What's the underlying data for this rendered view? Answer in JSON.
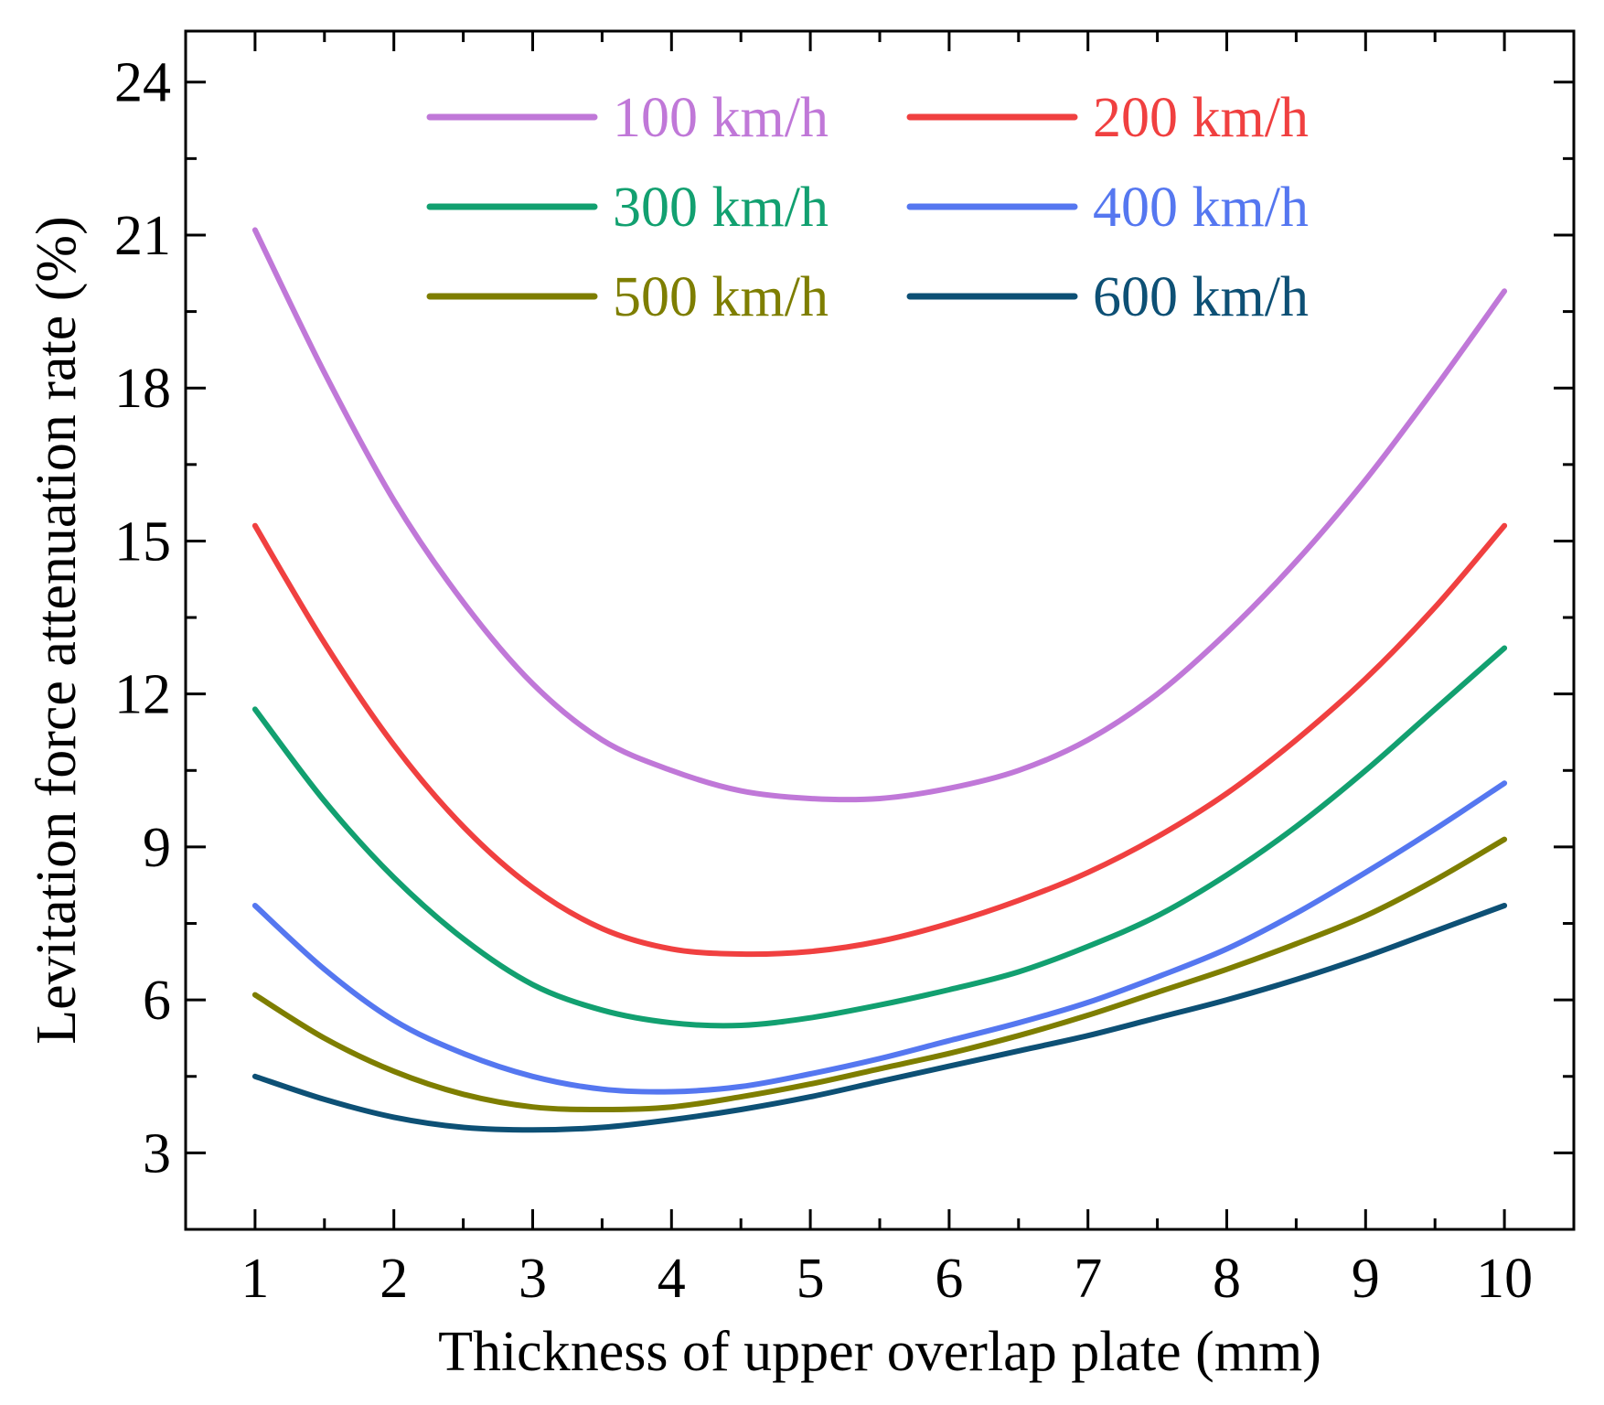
{
  "chart_data": {
    "type": "line",
    "title": "",
    "xlabel": "Thickness of upper overlap plate (mm)",
    "ylabel": "Levitation force attenuation rate (%)",
    "xlim": [
      0.5,
      10.5
    ],
    "ylim": [
      1.5,
      25
    ],
    "x_ticks": [
      1,
      2,
      3,
      4,
      5,
      6,
      7,
      8,
      9,
      10
    ],
    "x_tick_labels": [
      "1",
      "2",
      "3",
      "4",
      "5",
      "6",
      "7",
      "8",
      "9",
      "10"
    ],
    "y_ticks": [
      3,
      6,
      9,
      12,
      15,
      18,
      21,
      24
    ],
    "y_tick_labels": [
      "3",
      "6",
      "9",
      "12",
      "15",
      "18",
      "21",
      "24"
    ],
    "legend_position": "top",
    "x": [
      1,
      1.5,
      2,
      2.5,
      3,
      3.5,
      4,
      4.5,
      5,
      5.5,
      6,
      6.5,
      7,
      7.5,
      8,
      8.5,
      9,
      9.5,
      10
    ],
    "series": [
      {
        "name": "100 km/h",
        "color": "#c078d8",
        "values": [
          21.1,
          18.3,
          15.8,
          13.8,
          12.2,
          11.1,
          10.5,
          10.1,
          9.95,
          9.95,
          10.15,
          10.5,
          11.1,
          12.0,
          13.2,
          14.6,
          16.2,
          18.0,
          19.9
        ]
      },
      {
        "name": "200 km/h",
        "color": "#f04040",
        "values": [
          15.3,
          13.0,
          11.0,
          9.4,
          8.2,
          7.4,
          7.0,
          6.9,
          6.95,
          7.15,
          7.5,
          7.95,
          8.5,
          9.2,
          10.05,
          11.1,
          12.3,
          13.7,
          15.3
        ]
      },
      {
        "name": "300 km/h",
        "color": "#12a070",
        "values": [
          11.7,
          9.9,
          8.4,
          7.2,
          6.3,
          5.8,
          5.55,
          5.5,
          5.65,
          5.9,
          6.2,
          6.55,
          7.05,
          7.65,
          8.45,
          9.4,
          10.5,
          11.7,
          12.9
        ]
      },
      {
        "name": "400 km/h",
        "color": "#5577f0",
        "values": [
          7.85,
          6.6,
          5.6,
          4.95,
          4.5,
          4.25,
          4.2,
          4.3,
          4.55,
          4.85,
          5.2,
          5.55,
          5.95,
          6.45,
          7.0,
          7.7,
          8.5,
          9.35,
          10.25
        ]
      },
      {
        "name": "500 km/h",
        "color": "#7e7e00",
        "values": [
          6.1,
          5.25,
          4.6,
          4.15,
          3.9,
          3.85,
          3.9,
          4.1,
          4.35,
          4.65,
          4.95,
          5.3,
          5.7,
          6.15,
          6.6,
          7.1,
          7.65,
          8.35,
          9.15
        ]
      },
      {
        "name": "600 km/h",
        "color": "#0d5075",
        "values": [
          4.5,
          4.05,
          3.7,
          3.5,
          3.45,
          3.5,
          3.65,
          3.85,
          4.1,
          4.4,
          4.7,
          5.0,
          5.3,
          5.65,
          6.0,
          6.4,
          6.85,
          7.35,
          7.85
        ]
      }
    ]
  }
}
